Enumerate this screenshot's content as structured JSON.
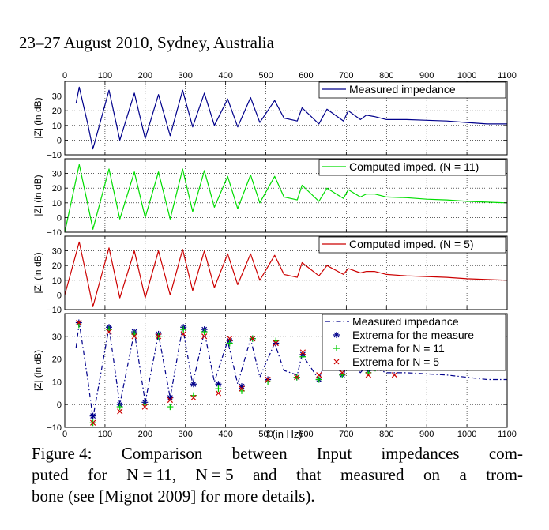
{
  "header": "23–27 August 2010, Sydney, Australia",
  "caption": {
    "lines": [
      [
        "Figure 4:",
        "Comparison",
        "between",
        "Input",
        "impedances",
        "com-"
      ],
      [
        "puted",
        "for",
        "N = 11,",
        "N = 5",
        "and",
        "that",
        "measured",
        "on",
        "a",
        "trom-"
      ],
      [
        "bone (see [Mignot 2009] for more details)."
      ]
    ]
  },
  "chart_data": [
    {
      "type": "line",
      "ylabel": "|Z| (in dB)",
      "xlim": [
        0,
        1100
      ],
      "ylim": [
        -10,
        40
      ],
      "x_ticks": [
        0,
        100,
        200,
        300,
        400,
        500,
        600,
        700,
        800,
        900,
        1000,
        1100
      ],
      "y_ticks": [
        -10,
        0,
        10,
        20,
        30
      ],
      "x_tick_labels_position": "top",
      "grid": true,
      "legend_position": "top-right",
      "series": [
        {
          "name": "Measured impedance",
          "color": "#00008b",
          "style": "solid",
          "x": [
            28,
            36,
            58,
            70,
            110,
            137,
            173,
            200,
            233,
            262,
            293,
            318,
            347,
            372,
            405,
            430,
            462,
            485,
            522,
            545,
            578,
            590,
            632,
            652,
            693,
            705,
            735,
            750,
            770,
            800,
            850,
            900,
            950,
            1000,
            1050,
            1100
          ],
          "y": [
            25,
            36,
            10,
            -6,
            34,
            0,
            32,
            1,
            31,
            3,
            34,
            9,
            32,
            10,
            28,
            9,
            29,
            12,
            27,
            15,
            13,
            22,
            11,
            21,
            13,
            20,
            14,
            17,
            16,
            14,
            14,
            13.5,
            13,
            12,
            11,
            11
          ]
        }
      ]
    },
    {
      "type": "line",
      "ylabel": "|Z| (in dB)",
      "xlim": [
        0,
        1100
      ],
      "ylim": [
        -10,
        40
      ],
      "x_ticks": [
        0,
        100,
        200,
        300,
        400,
        500,
        600,
        700,
        800,
        900,
        1000,
        1100
      ],
      "y_ticks": [
        -10,
        0,
        10,
        20,
        30
      ],
      "grid": true,
      "legend_position": "top-right",
      "series": [
        {
          "name": "Computed imped. (N = 11)",
          "color": "#00dd00",
          "style": "solid",
          "x": [
            0,
            36,
            58,
            70,
            110,
            137,
            173,
            200,
            233,
            262,
            293,
            318,
            347,
            372,
            405,
            430,
            462,
            485,
            522,
            545,
            578,
            590,
            632,
            652,
            693,
            705,
            735,
            750,
            770,
            800,
            850,
            900,
            950,
            1000,
            1050,
            1100
          ],
          "y": [
            -10,
            36,
            8,
            -8,
            33,
            -1,
            31,
            0,
            31,
            -1,
            33,
            4,
            32,
            7,
            28,
            6,
            29,
            10,
            28,
            14,
            12,
            22,
            11,
            20,
            13,
            19,
            14,
            16,
            16,
            14,
            13.5,
            12.5,
            12,
            11,
            10.5,
            10
          ]
        }
      ]
    },
    {
      "type": "line",
      "ylabel": "|Z| (in dB)",
      "xlim": [
        0,
        1100
      ],
      "ylim": [
        -10,
        40
      ],
      "x_ticks": [
        0,
        100,
        200,
        300,
        400,
        500,
        600,
        700,
        800,
        900,
        1000,
        1100
      ],
      "y_ticks": [
        -10,
        0,
        10,
        20,
        30
      ],
      "grid": true,
      "legend_position": "top-right",
      "series": [
        {
          "name": "Computed imped. (N = 5)",
          "color": "#cc0000",
          "style": "solid",
          "x": [
            0,
            36,
            58,
            70,
            110,
            137,
            173,
            200,
            233,
            262,
            293,
            318,
            347,
            372,
            405,
            430,
            462,
            485,
            522,
            545,
            578,
            590,
            632,
            652,
            693,
            705,
            735,
            750,
            770,
            800,
            850,
            900,
            950,
            1000,
            1050,
            1100
          ],
          "y": [
            0,
            36,
            8,
            -8,
            32,
            -2,
            30,
            -2,
            30,
            0,
            31,
            3,
            30,
            5,
            28,
            7,
            28,
            10,
            27,
            14,
            12,
            22,
            13,
            20,
            14,
            18,
            15,
            16,
            16,
            14,
            13,
            12.5,
            12,
            11,
            10.5,
            10
          ]
        }
      ]
    },
    {
      "type": "scatter",
      "xlabel": "f (in Hz)",
      "ylabel": "|Z| (in dB)",
      "xlim": [
        0,
        1100
      ],
      "ylim": [
        -10,
        40
      ],
      "x_ticks": [
        0,
        100,
        200,
        300,
        400,
        500,
        600,
        700,
        800,
        900,
        1000,
        1100
      ],
      "y_ticks": [
        -10,
        0,
        10,
        20,
        30
      ],
      "grid": true,
      "legend_position": "top-right",
      "series": [
        {
          "name": "Measured impedance",
          "color": "#00008b",
          "style": "dashdot",
          "x": [
            28,
            36,
            58,
            70,
            110,
            137,
            173,
            200,
            233,
            262,
            293,
            318,
            347,
            372,
            405,
            430,
            462,
            485,
            522,
            545,
            578,
            590,
            632,
            652,
            693,
            705,
            735,
            750,
            770,
            800,
            850,
            900,
            950,
            1000,
            1050,
            1100
          ],
          "y": [
            25,
            36,
            10,
            -6,
            34,
            0,
            32,
            1,
            31,
            3,
            34,
            9,
            32,
            10,
            28,
            9,
            29,
            12,
            27,
            15,
            13,
            22,
            11,
            21,
            13,
            20,
            14,
            17,
            16,
            14,
            14,
            13.5,
            13,
            12,
            11,
            11
          ]
        },
        {
          "name": "Extrema for the measure",
          "color": "#00008b",
          "marker": "asterisk",
          "x": [
            35,
            70,
            110,
            137,
            173,
            199,
            233,
            262,
            295,
            320,
            347,
            382,
            410,
            440,
            467,
            505,
            525,
            577,
            592,
            632,
            660,
            690,
            705,
            755,
            772
          ],
          "y": [
            36,
            -5,
            34,
            0,
            32,
            1,
            31,
            3,
            34,
            9,
            33,
            9,
            28,
            8,
            29,
            11,
            27,
            12,
            22,
            11,
            21,
            13,
            20,
            15,
            16
          ]
        },
        {
          "name": "Extrema for N = 11",
          "color": "#00cc00",
          "marker": "plus",
          "x": [
            35,
            70,
            110,
            137,
            173,
            199,
            233,
            262,
            295,
            320,
            347,
            382,
            410,
            440,
            467,
            505,
            525,
            577,
            592,
            632,
            660,
            690,
            705,
            755,
            772
          ],
          "y": [
            35,
            -8,
            33,
            -1,
            31,
            0,
            30,
            -1,
            33,
            4,
            32,
            7,
            27,
            6,
            29,
            10,
            28,
            12,
            21,
            11,
            20,
            13,
            19,
            14,
            16
          ]
        },
        {
          "name": "Extrema for N = 5",
          "color": "#cc0000",
          "marker": "cross",
          "x": [
            35,
            70,
            110,
            137,
            173,
            199,
            233,
            262,
            295,
            320,
            347,
            382,
            410,
            440,
            467,
            505,
            525,
            577,
            592,
            632,
            660,
            690,
            705,
            755,
            772,
            820
          ],
          "y": [
            36,
            -8,
            32,
            -3,
            30,
            -1,
            30,
            2,
            31,
            3,
            30,
            5,
            29,
            7,
            29,
            11,
            27,
            12,
            23,
            13,
            20,
            14,
            19,
            13,
            16,
            13
          ]
        }
      ]
    }
  ]
}
